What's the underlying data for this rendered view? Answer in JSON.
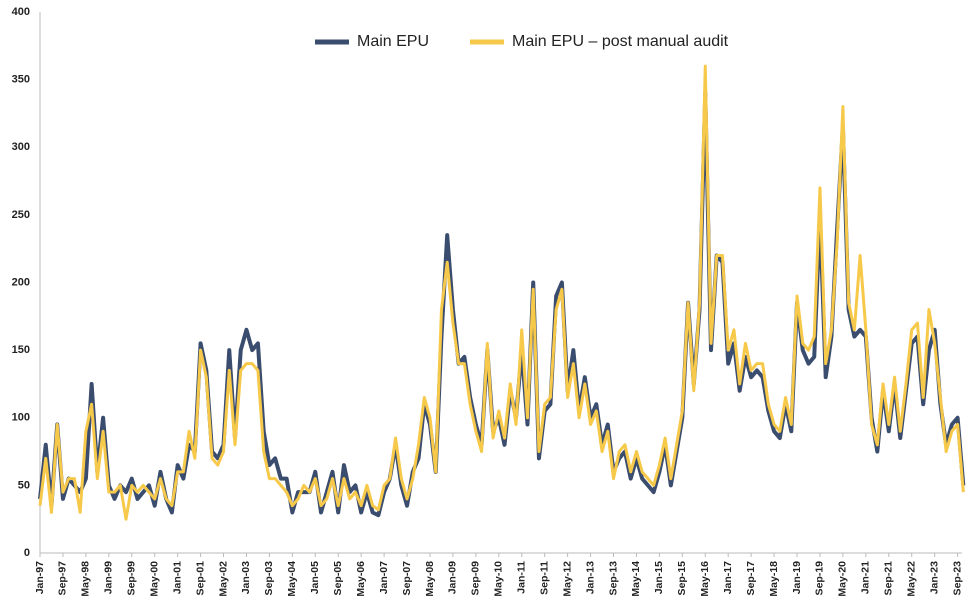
{
  "chart_data": {
    "type": "line",
    "categories": [
      "Jan-97",
      null,
      null,
      null,
      "Sep-97",
      null,
      null,
      null,
      "May-98",
      null,
      null,
      null,
      "Jan-99",
      null,
      null,
      null,
      "Sep-99",
      null,
      null,
      null,
      "May-00",
      null,
      null,
      null,
      "Jan-01",
      null,
      null,
      null,
      "Sep-01",
      null,
      null,
      null,
      "May-02",
      null,
      null,
      null,
      "Jan-03",
      null,
      null,
      null,
      "Sep-03",
      null,
      null,
      null,
      "May-04",
      null,
      null,
      null,
      "Jan-05",
      null,
      null,
      null,
      "Sep-05",
      null,
      null,
      null,
      "May-06",
      null,
      null,
      null,
      "Jan-07",
      null,
      null,
      null,
      "Sep-07",
      null,
      null,
      null,
      "May-08",
      null,
      null,
      null,
      "Jan-09",
      null,
      null,
      null,
      "Sep-09",
      null,
      null,
      null,
      "May-10",
      null,
      null,
      null,
      "Jan-11",
      null,
      null,
      null,
      "Sep-11",
      null,
      null,
      null,
      "May-12",
      null,
      null,
      null,
      "Jan-13",
      null,
      null,
      null,
      "Sep-13",
      null,
      null,
      null,
      "May-14",
      null,
      null,
      null,
      "Jan-15",
      null,
      null,
      null,
      "Sep-15",
      null,
      null,
      null,
      "May-16",
      null,
      null,
      null,
      "Jan-17",
      null,
      null,
      null,
      "Sep-17",
      null,
      null,
      null,
      "May-18",
      null,
      null,
      null,
      "Jan-19",
      null,
      null,
      null,
      "Sep-19",
      null,
      null,
      null,
      "May-20",
      null,
      null,
      null,
      "Jan-21",
      null,
      null,
      null,
      "Sep-21",
      null,
      null,
      null,
      "May-22",
      null,
      null,
      null,
      "Jan-23",
      null,
      null,
      null,
      "Sep-23",
      null
    ],
    "series": [
      {
        "name": "Main EPU",
        "color": "#3b4d6e",
        "values": [
          40,
          80,
          35,
          95,
          40,
          55,
          50,
          45,
          55,
          125,
          60,
          100,
          50,
          40,
          50,
          45,
          55,
          40,
          45,
          50,
          35,
          60,
          40,
          30,
          65,
          55,
          80,
          75,
          155,
          135,
          75,
          70,
          80,
          150,
          85,
          150,
          165,
          150,
          155,
          90,
          65,
          70,
          55,
          55,
          30,
          45,
          45,
          45,
          60,
          30,
          45,
          60,
          30,
          65,
          45,
          50,
          30,
          45,
          30,
          28,
          45,
          55,
          80,
          50,
          35,
          60,
          70,
          110,
          95,
          60,
          160,
          235,
          180,
          140,
          145,
          115,
          95,
          80,
          150,
          90,
          100,
          80,
          120,
          100,
          150,
          95,
          200,
          70,
          105,
          110,
          190,
          200,
          120,
          150,
          105,
          130,
          100,
          110,
          80,
          95,
          60,
          70,
          75,
          55,
          70,
          55,
          50,
          45,
          60,
          80,
          50,
          75,
          100,
          185,
          125,
          180,
          340,
          150,
          220,
          215,
          140,
          155,
          120,
          145,
          130,
          135,
          130,
          105,
          90,
          85,
          110,
          90,
          185,
          150,
          140,
          145,
          250,
          130,
          160,
          240,
          315,
          180,
          160,
          165,
          160,
          100,
          75,
          120,
          90,
          125,
          85,
          120,
          155,
          160,
          110,
          150,
          165,
          110,
          80,
          95,
          100,
          50
        ]
      },
      {
        "name": "Main EPU – post manual audit",
        "color": "#f7c94a",
        "values": [
          35,
          70,
          30,
          95,
          45,
          55,
          55,
          30,
          90,
          110,
          55,
          90,
          45,
          45,
          50,
          25,
          50,
          45,
          50,
          45,
          40,
          55,
          40,
          35,
          60,
          60,
          90,
          70,
          150,
          130,
          70,
          65,
          75,
          135,
          80,
          135,
          140,
          140,
          135,
          75,
          55,
          55,
          50,
          45,
          35,
          40,
          50,
          45,
          55,
          35,
          40,
          55,
          35,
          55,
          40,
          45,
          35,
          50,
          35,
          32,
          50,
          55,
          85,
          55,
          40,
          55,
          80,
          115,
          100,
          60,
          180,
          215,
          170,
          140,
          140,
          110,
          90,
          75,
          155,
          85,
          105,
          85,
          125,
          95,
          165,
          100,
          195,
          75,
          110,
          115,
          180,
          195,
          115,
          140,
          100,
          125,
          95,
          105,
          75,
          90,
          55,
          75,
          80,
          60,
          75,
          60,
          55,
          50,
          65,
          85,
          55,
          80,
          105,
          185,
          120,
          185,
          360,
          155,
          220,
          220,
          150,
          165,
          125,
          155,
          135,
          140,
          140,
          110,
          95,
          90,
          115,
          95,
          190,
          155,
          150,
          160,
          270,
          140,
          165,
          230,
          330,
          185,
          165,
          220,
          165,
          95,
          80,
          125,
          95,
          130,
          90,
          125,
          165,
          170,
          115,
          180,
          155,
          115,
          75,
          90,
          95,
          45
        ]
      }
    ],
    "ylim": [
      0,
      400
    ],
    "yticks": [
      0,
      50,
      100,
      150,
      200,
      250,
      300,
      350,
      400
    ],
    "grid": false
  }
}
